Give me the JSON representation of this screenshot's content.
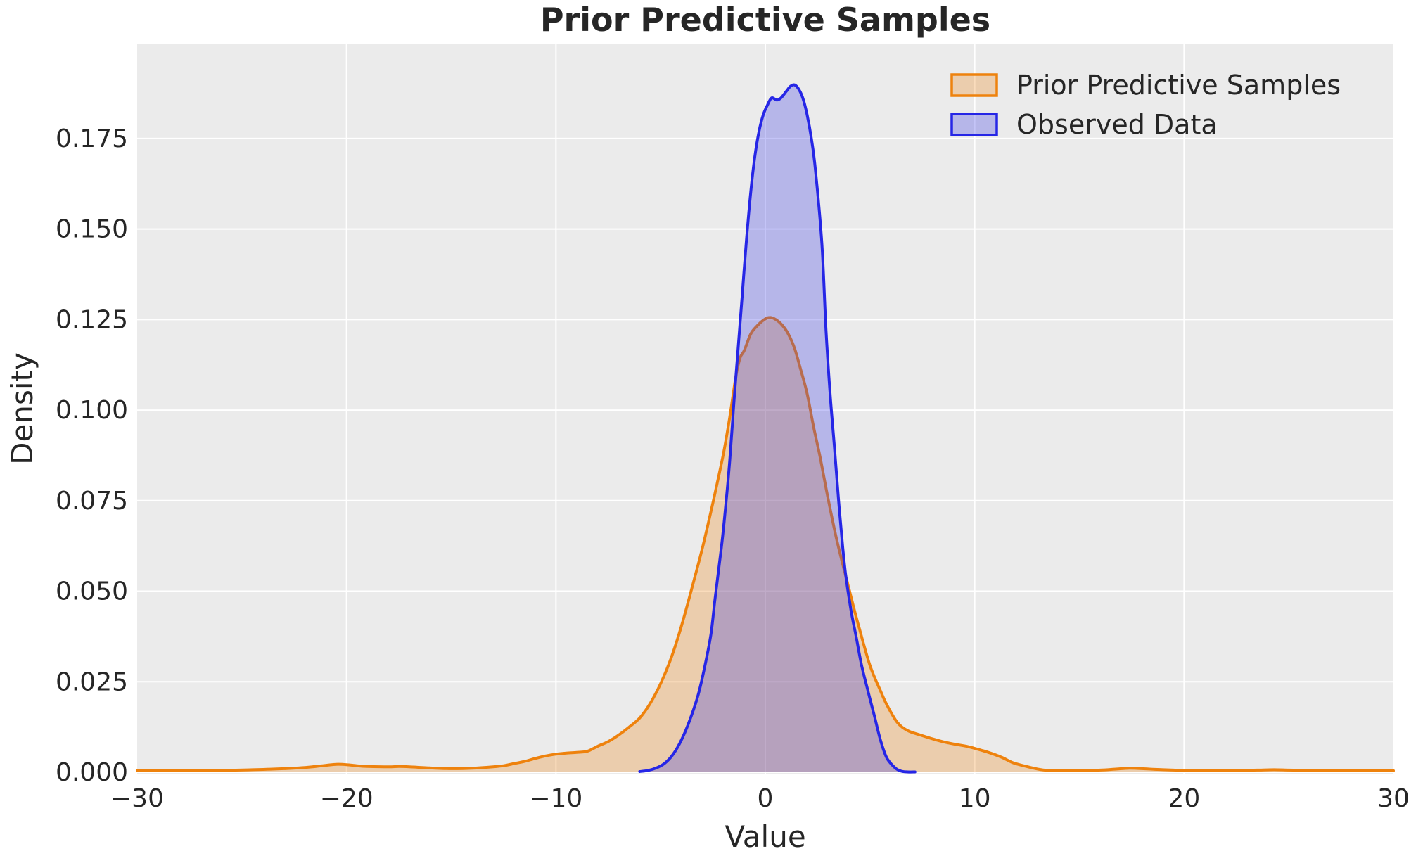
{
  "title": "Prior Predictive Samples",
  "axes": {
    "xlabel": "Value",
    "ylabel": "Density",
    "x_ticks": [
      {
        "v": -30,
        "label": "−30"
      },
      {
        "v": -20,
        "label": "−20"
      },
      {
        "v": -10,
        "label": "−10"
      },
      {
        "v": 0,
        "label": "0"
      },
      {
        "v": 10,
        "label": "10"
      },
      {
        "v": 20,
        "label": "20"
      },
      {
        "v": 30,
        "label": "30"
      }
    ],
    "y_ticks": [
      {
        "v": 0.0,
        "label": "0.000"
      },
      {
        "v": 0.025,
        "label": "0.025"
      },
      {
        "v": 0.05,
        "label": "0.050"
      },
      {
        "v": 0.075,
        "label": "0.075"
      },
      {
        "v": 0.1,
        "label": "0.100"
      },
      {
        "v": 0.125,
        "label": "0.125"
      },
      {
        "v": 0.15,
        "label": "0.150"
      },
      {
        "v": 0.175,
        "label": "0.175"
      }
    ]
  },
  "colors": {
    "plot_background": "#ebebeb",
    "gridline": "#ffffff",
    "text": "#262626",
    "prior_line": "#ee820d",
    "prior_fill": "rgba(238,130,13,0.28)",
    "observed_line": "#2626e6",
    "observed_fill": "rgba(60,60,230,0.30)"
  },
  "legend": {
    "position": "upper right"
  },
  "chart_data": {
    "type": "area",
    "subtype": "kde-density",
    "title": "Prior Predictive Samples",
    "xlabel": "Value",
    "ylabel": "Density",
    "xlim": [
      -30,
      30
    ],
    "ylim": [
      0,
      0.201
    ],
    "grid": true,
    "legend_position": "upper right",
    "series": [
      {
        "name": "Prior Predictive Samples",
        "color": "#ee820d",
        "fill": "rgba(238,130,13,0.28)",
        "peak": {
          "x": 0.2,
          "density": 0.1256
        },
        "points": [
          [
            -30,
            0.0004
          ],
          [
            -28,
            0.0004
          ],
          [
            -26,
            0.0005
          ],
          [
            -24.5,
            0.0007
          ],
          [
            -23,
            0.001
          ],
          [
            -22,
            0.0013
          ],
          [
            -21,
            0.0019
          ],
          [
            -20.5,
            0.0022
          ],
          [
            -20,
            0.0021
          ],
          [
            -19.5,
            0.0018
          ],
          [
            -19,
            0.0016
          ],
          [
            -18,
            0.0015
          ],
          [
            -17.5,
            0.0016
          ],
          [
            -17,
            0.0015
          ],
          [
            -16,
            0.0012
          ],
          [
            -15,
            0.001
          ],
          [
            -14,
            0.0011
          ],
          [
            -13,
            0.0015
          ],
          [
            -12.5,
            0.0018
          ],
          [
            -12,
            0.0024
          ],
          [
            -11.5,
            0.003
          ],
          [
            -11,
            0.0038
          ],
          [
            -10.5,
            0.0045
          ],
          [
            -10,
            0.005
          ],
          [
            -9.5,
            0.0053
          ],
          [
            -9,
            0.0055
          ],
          [
            -8.5,
            0.0058
          ],
          [
            -8,
            0.0072
          ],
          [
            -7.5,
            0.0085
          ],
          [
            -7,
            0.0103
          ],
          [
            -6.5,
            0.0125
          ],
          [
            -6,
            0.015
          ],
          [
            -5.5,
            0.019
          ],
          [
            -5,
            0.0245
          ],
          [
            -4.5,
            0.0315
          ],
          [
            -4,
            0.0405
          ],
          [
            -3.5,
            0.051
          ],
          [
            -3,
            0.062
          ],
          [
            -2.5,
            0.0745
          ],
          [
            -2,
            0.088
          ],
          [
            -1.7,
            0.098
          ],
          [
            -1.4,
            0.1095
          ],
          [
            -1.2,
            0.1145
          ],
          [
            -1,
            0.1165
          ],
          [
            -0.7,
            0.121
          ],
          [
            -0.4,
            0.1232
          ],
          [
            -0.1,
            0.1248
          ],
          [
            0.2,
            0.1256
          ],
          [
            0.5,
            0.125
          ],
          [
            0.8,
            0.1235
          ],
          [
            1.1,
            0.121
          ],
          [
            1.4,
            0.117
          ],
          [
            1.7,
            0.111
          ],
          [
            2,
            0.1045
          ],
          [
            2.3,
            0.0955
          ],
          [
            2.6,
            0.0875
          ],
          [
            3,
            0.0755
          ],
          [
            3.4,
            0.0645
          ],
          [
            3.85,
            0.054
          ],
          [
            4.2,
            0.046
          ],
          [
            4.5,
            0.0395
          ],
          [
            5,
            0.0295
          ],
          [
            5.5,
            0.0225
          ],
          [
            5.8,
            0.0187
          ],
          [
            6.3,
            0.0138
          ],
          [
            6.8,
            0.0115
          ],
          [
            7.4,
            0.0103
          ],
          [
            8,
            0.0092
          ],
          [
            8.5,
            0.0084
          ],
          [
            9,
            0.0078
          ],
          [
            9.6,
            0.0072
          ],
          [
            10,
            0.0066
          ],
          [
            10.7,
            0.0054
          ],
          [
            11.3,
            0.0041
          ],
          [
            11.8,
            0.0027
          ],
          [
            12.4,
            0.0017
          ],
          [
            13,
            0.0009
          ],
          [
            13.5,
            0.0005
          ],
          [
            14.1,
            0.0004
          ],
          [
            15,
            0.0004
          ],
          [
            16,
            0.0006
          ],
          [
            16.8,
            0.0009
          ],
          [
            17.4,
            0.0011
          ],
          [
            18,
            0.001
          ],
          [
            18.6,
            0.0008
          ],
          [
            19.5,
            0.0006
          ],
          [
            20.5,
            0.0004
          ],
          [
            21.5,
            0.0004
          ],
          [
            22.5,
            0.0005
          ],
          [
            23.5,
            0.0006
          ],
          [
            24.3,
            0.0007
          ],
          [
            25,
            0.0006
          ],
          [
            26,
            0.0005
          ],
          [
            27,
            0.0004
          ],
          [
            28,
            0.0004
          ],
          [
            29,
            0.0004
          ],
          [
            30,
            0.0004
          ]
        ]
      },
      {
        "name": "Observed Data",
        "color": "#2626e6",
        "fill": "rgba(60,60,230,0.30)",
        "peak": {
          "x": 1.4,
          "density": 0.1898
        },
        "points": [
          [
            -6,
            0.0002
          ],
          [
            -5.6,
            0.0005
          ],
          [
            -5.2,
            0.0012
          ],
          [
            -4.8,
            0.0025
          ],
          [
            -4.4,
            0.005
          ],
          [
            -4,
            0.009
          ],
          [
            -3.6,
            0.0145
          ],
          [
            -3.2,
            0.0215
          ],
          [
            -2.9,
            0.029
          ],
          [
            -2.6,
            0.038
          ],
          [
            -2.4,
            0.048
          ],
          [
            -2.1,
            0.062
          ],
          [
            -1.9,
            0.073
          ],
          [
            -1.7,
            0.086
          ],
          [
            -1.5,
            0.102
          ],
          [
            -1.3,
            0.117
          ],
          [
            -1.1,
            0.132
          ],
          [
            -0.9,
            0.147
          ],
          [
            -0.7,
            0.16
          ],
          [
            -0.5,
            0.17
          ],
          [
            -0.3,
            0.177
          ],
          [
            -0.1,
            0.1815
          ],
          [
            0.1,
            0.1842
          ],
          [
            0.3,
            0.1862
          ],
          [
            0.55,
            0.1856
          ],
          [
            0.75,
            0.1862
          ],
          [
            1,
            0.188
          ],
          [
            1.2,
            0.1894
          ],
          [
            1.4,
            0.1898
          ],
          [
            1.6,
            0.1886
          ],
          [
            1.8,
            0.186
          ],
          [
            2,
            0.1815
          ],
          [
            2.2,
            0.175
          ],
          [
            2.4,
            0.166
          ],
          [
            2.7,
            0.146
          ],
          [
            2.9,
            0.122
          ],
          [
            3.1,
            0.104
          ],
          [
            3.3,
            0.09
          ],
          [
            3.5,
            0.075
          ],
          [
            3.7,
            0.062
          ],
          [
            3.85,
            0.054
          ],
          [
            4.1,
            0.0445
          ],
          [
            4.33,
            0.0377
          ],
          [
            4.6,
            0.0295
          ],
          [
            4.9,
            0.0225
          ],
          [
            5.2,
            0.0158
          ],
          [
            5.5,
            0.0089
          ],
          [
            5.8,
            0.004
          ],
          [
            6.2,
            0.0012
          ],
          [
            6.5,
            0.0003
          ],
          [
            6.8,
            0.0001
          ],
          [
            7.15,
            0.0001
          ]
        ]
      }
    ]
  }
}
